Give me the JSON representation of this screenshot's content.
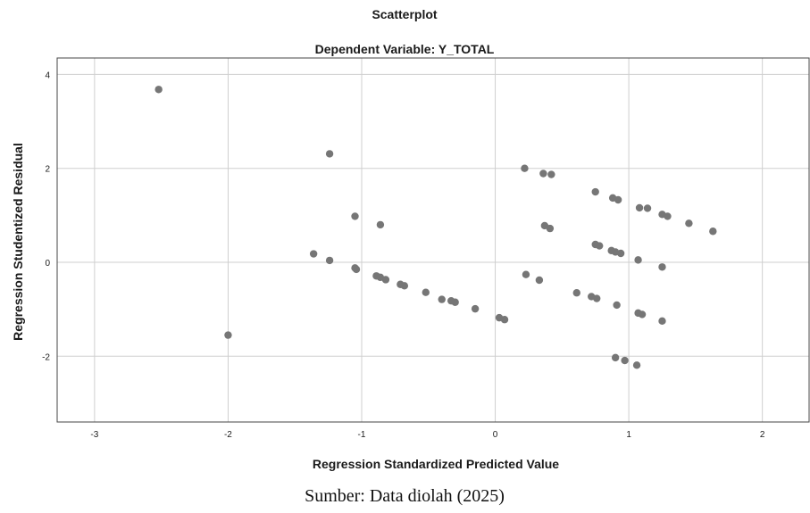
{
  "chart_data": {
    "type": "scatter",
    "title": "Scatterplot",
    "subtitle": "Dependent Variable: Y_TOTAL",
    "xlabel": "Regression Standardized Predicted Value",
    "ylabel": "Regression Studentized Residual",
    "xlim": [
      -3.28,
      2.35
    ],
    "ylim": [
      -3.4,
      4.35
    ],
    "xticks": [
      -3,
      -2,
      -1,
      0,
      1,
      2
    ],
    "yticks": [
      -2,
      0,
      2,
      4
    ],
    "xtick_labels": [
      "-3",
      "-2",
      "-1",
      "0",
      "1",
      "2"
    ],
    "ytick_labels": [
      "-2",
      "0",
      "2",
      "4"
    ],
    "grid": true,
    "marker_color": "#767676",
    "points": [
      {
        "x": -2.52,
        "y": 3.68
      },
      {
        "x": -1.24,
        "y": 2.31
      },
      {
        "x": -1.05,
        "y": 0.98
      },
      {
        "x": -0.86,
        "y": 0.8
      },
      {
        "x": -1.36,
        "y": 0.18
      },
      {
        "x": -1.24,
        "y": 0.04
      },
      {
        "x": -1.05,
        "y": -0.12
      },
      {
        "x": -1.04,
        "y": -0.15
      },
      {
        "x": -0.89,
        "y": -0.29
      },
      {
        "x": -0.86,
        "y": -0.32
      },
      {
        "x": -0.82,
        "y": -0.37
      },
      {
        "x": -0.71,
        "y": -0.47
      },
      {
        "x": -0.68,
        "y": -0.5
      },
      {
        "x": -0.52,
        "y": -0.64
      },
      {
        "x": -0.4,
        "y": -0.79
      },
      {
        "x": -0.33,
        "y": -0.82
      },
      {
        "x": -0.3,
        "y": -0.85
      },
      {
        "x": -0.15,
        "y": -0.99
      },
      {
        "x": 0.03,
        "y": -1.18
      },
      {
        "x": 0.07,
        "y": -1.22
      },
      {
        "x": -2.0,
        "y": -1.55
      },
      {
        "x": 0.22,
        "y": 2.0
      },
      {
        "x": 0.36,
        "y": 1.89
      },
      {
        "x": 0.42,
        "y": 1.87
      },
      {
        "x": 0.75,
        "y": 1.5
      },
      {
        "x": 0.88,
        "y": 1.37
      },
      {
        "x": 0.92,
        "y": 1.33
      },
      {
        "x": 1.08,
        "y": 1.16
      },
      {
        "x": 1.14,
        "y": 1.15
      },
      {
        "x": 1.25,
        "y": 1.02
      },
      {
        "x": 1.29,
        "y": 0.98
      },
      {
        "x": 1.45,
        "y": 0.83
      },
      {
        "x": 1.63,
        "y": 0.66
      },
      {
        "x": 0.37,
        "y": 0.78
      },
      {
        "x": 0.41,
        "y": 0.72
      },
      {
        "x": 0.75,
        "y": 0.38
      },
      {
        "x": 0.78,
        "y": 0.35
      },
      {
        "x": 0.87,
        "y": 0.25
      },
      {
        "x": 0.9,
        "y": 0.22
      },
      {
        "x": 0.94,
        "y": 0.19
      },
      {
        "x": 1.07,
        "y": 0.05
      },
      {
        "x": 1.25,
        "y": -0.1
      },
      {
        "x": 0.23,
        "y": -0.26
      },
      {
        "x": 0.33,
        "y": -0.38
      },
      {
        "x": 0.61,
        "y": -0.65
      },
      {
        "x": 0.72,
        "y": -0.73
      },
      {
        "x": 0.76,
        "y": -0.77
      },
      {
        "x": 0.91,
        "y": -0.91
      },
      {
        "x": 1.07,
        "y": -1.08
      },
      {
        "x": 1.1,
        "y": -1.11
      },
      {
        "x": 1.25,
        "y": -1.25
      },
      {
        "x": 0.9,
        "y": -2.03
      },
      {
        "x": 0.97,
        "y": -2.09
      },
      {
        "x": 1.06,
        "y": -2.19
      }
    ]
  },
  "caption": "Sumber: Data diolah (2025)"
}
